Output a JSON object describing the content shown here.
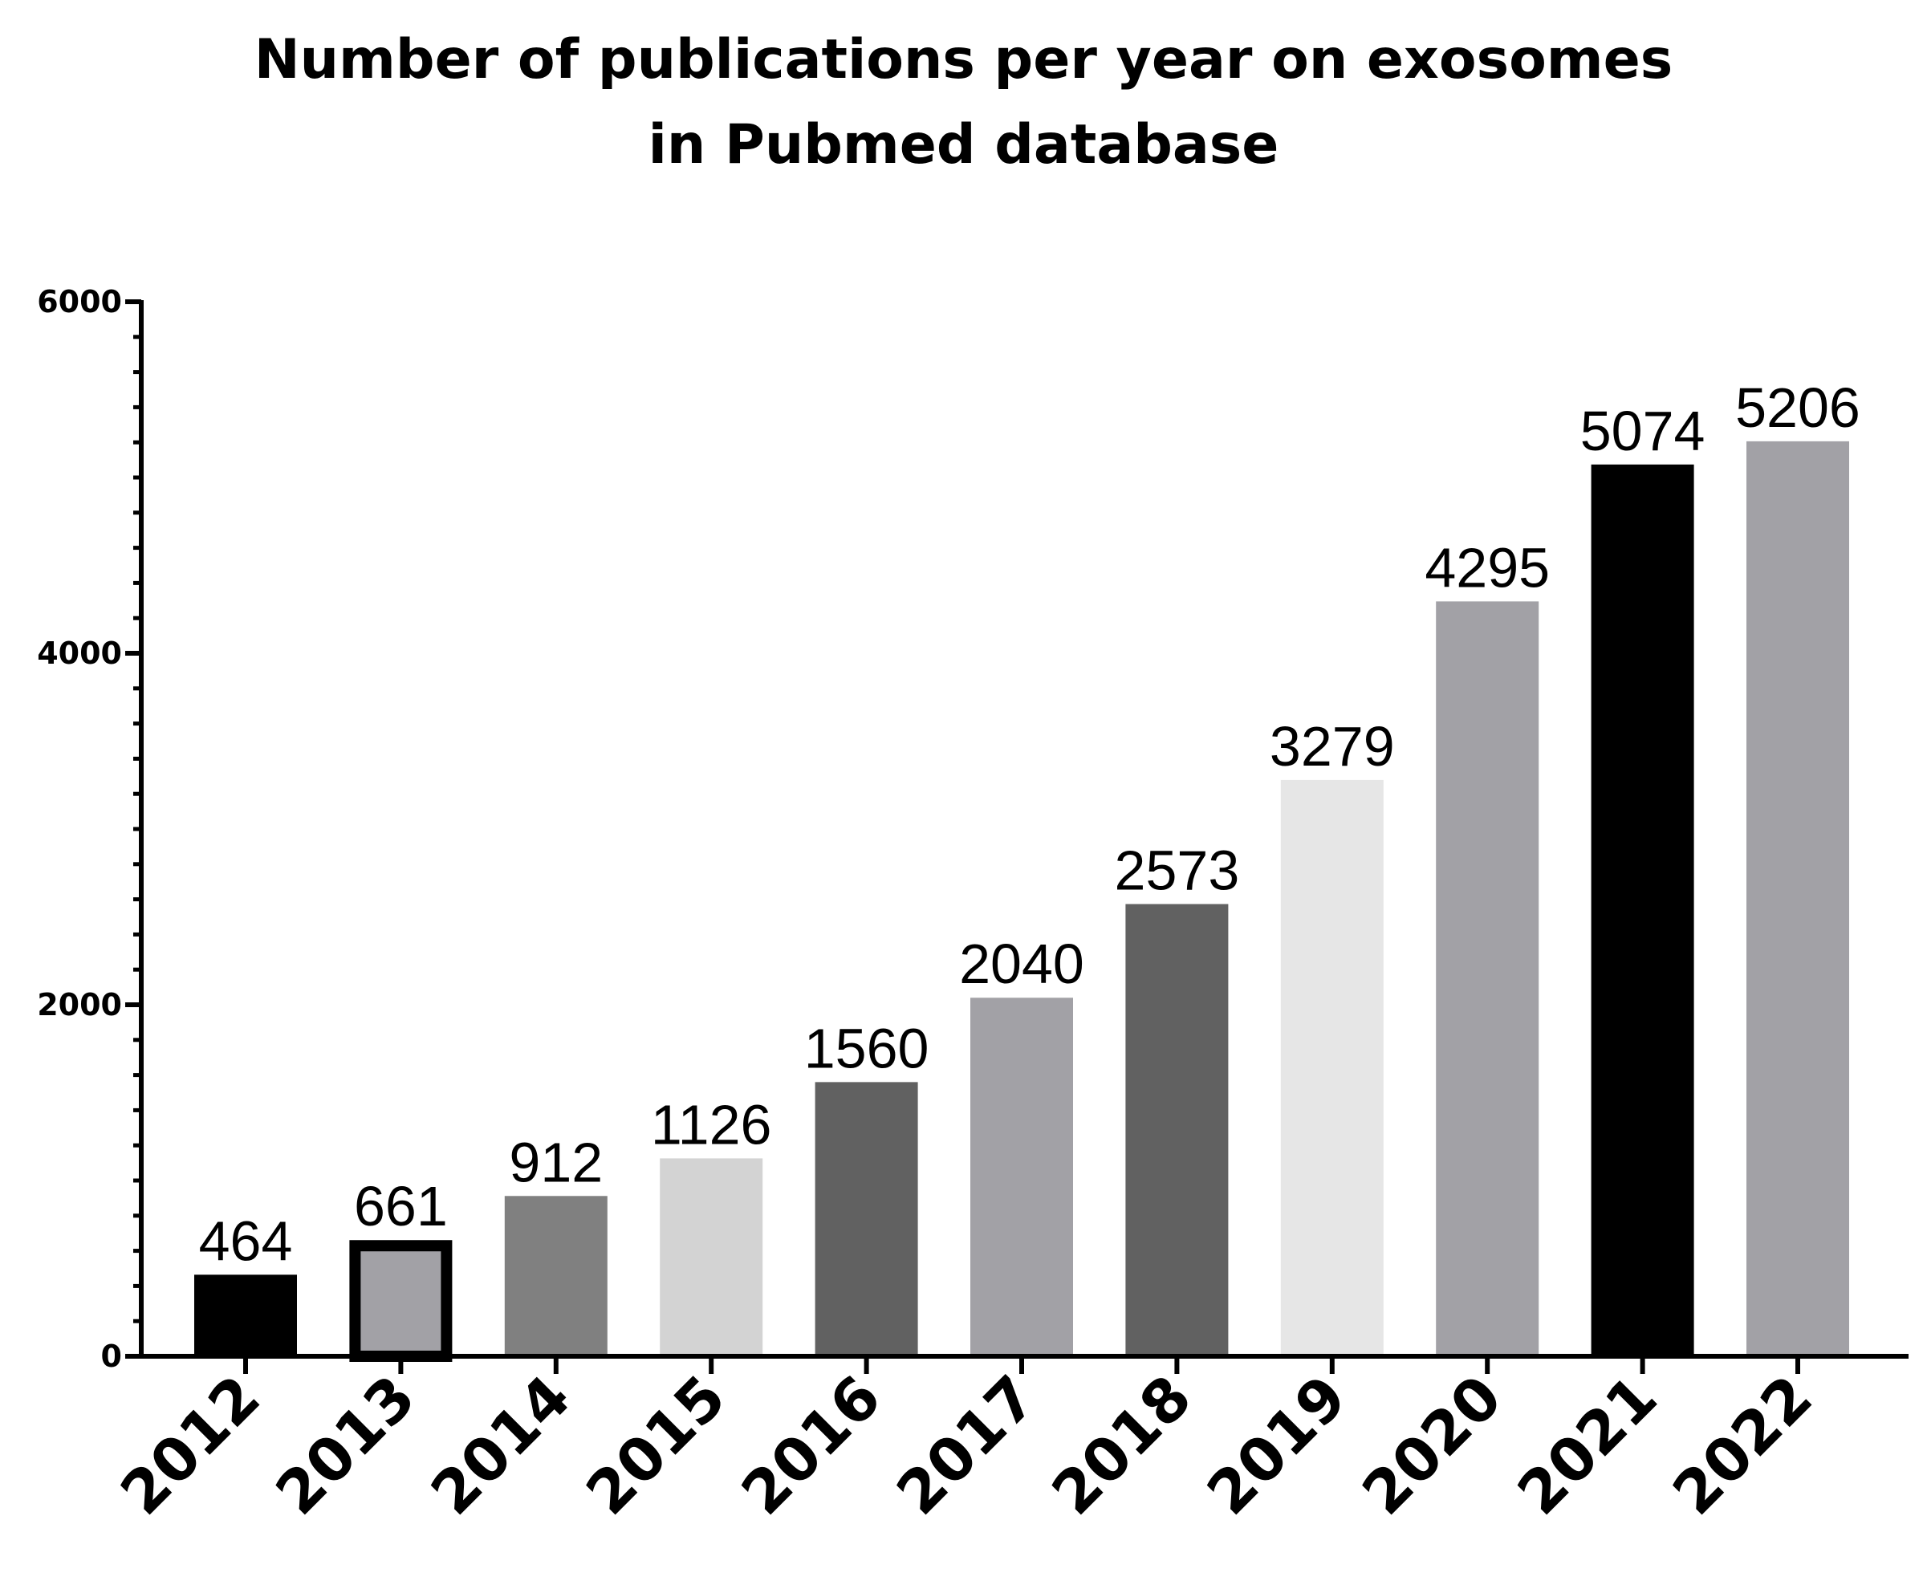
{
  "chart_data": {
    "type": "bar",
    "title_lines": [
      "Number of publications per year on exosomes",
      "in Pubmed database"
    ],
    "xlabel": "",
    "ylabel": "",
    "categories": [
      "2012",
      "2013",
      "2014",
      "2015",
      "2016",
      "2017",
      "2018",
      "2019",
      "2020",
      "2021",
      "2022"
    ],
    "values": [
      464,
      661,
      912,
      1126,
      1560,
      2040,
      2573,
      3279,
      4295,
      5074,
      5206
    ],
    "data_labels": [
      "464",
      "661",
      "912",
      "1126",
      "1560",
      "2040",
      "2573",
      "3279",
      "4295",
      "5074",
      "5206"
    ],
    "bar_colors": [
      "#000000",
      "#a2a1a6",
      "#808080",
      "#d3d3d3",
      "#616161",
      "#a2a1a6",
      "#616161",
      "#e6e6e6",
      "#a2a1a6",
      "#000000",
      "#a2a1a6"
    ],
    "bar_outline": [
      false,
      true,
      false,
      false,
      false,
      false,
      false,
      false,
      false,
      false,
      false
    ],
    "outline_color": "#000000",
    "yticks": [
      0,
      2000,
      4000,
      6000
    ],
    "ytick_labels": [
      "0",
      "2000",
      "4000",
      "6000"
    ],
    "ylim": [
      0,
      6000
    ],
    "grid": false,
    "legend": "none"
  }
}
